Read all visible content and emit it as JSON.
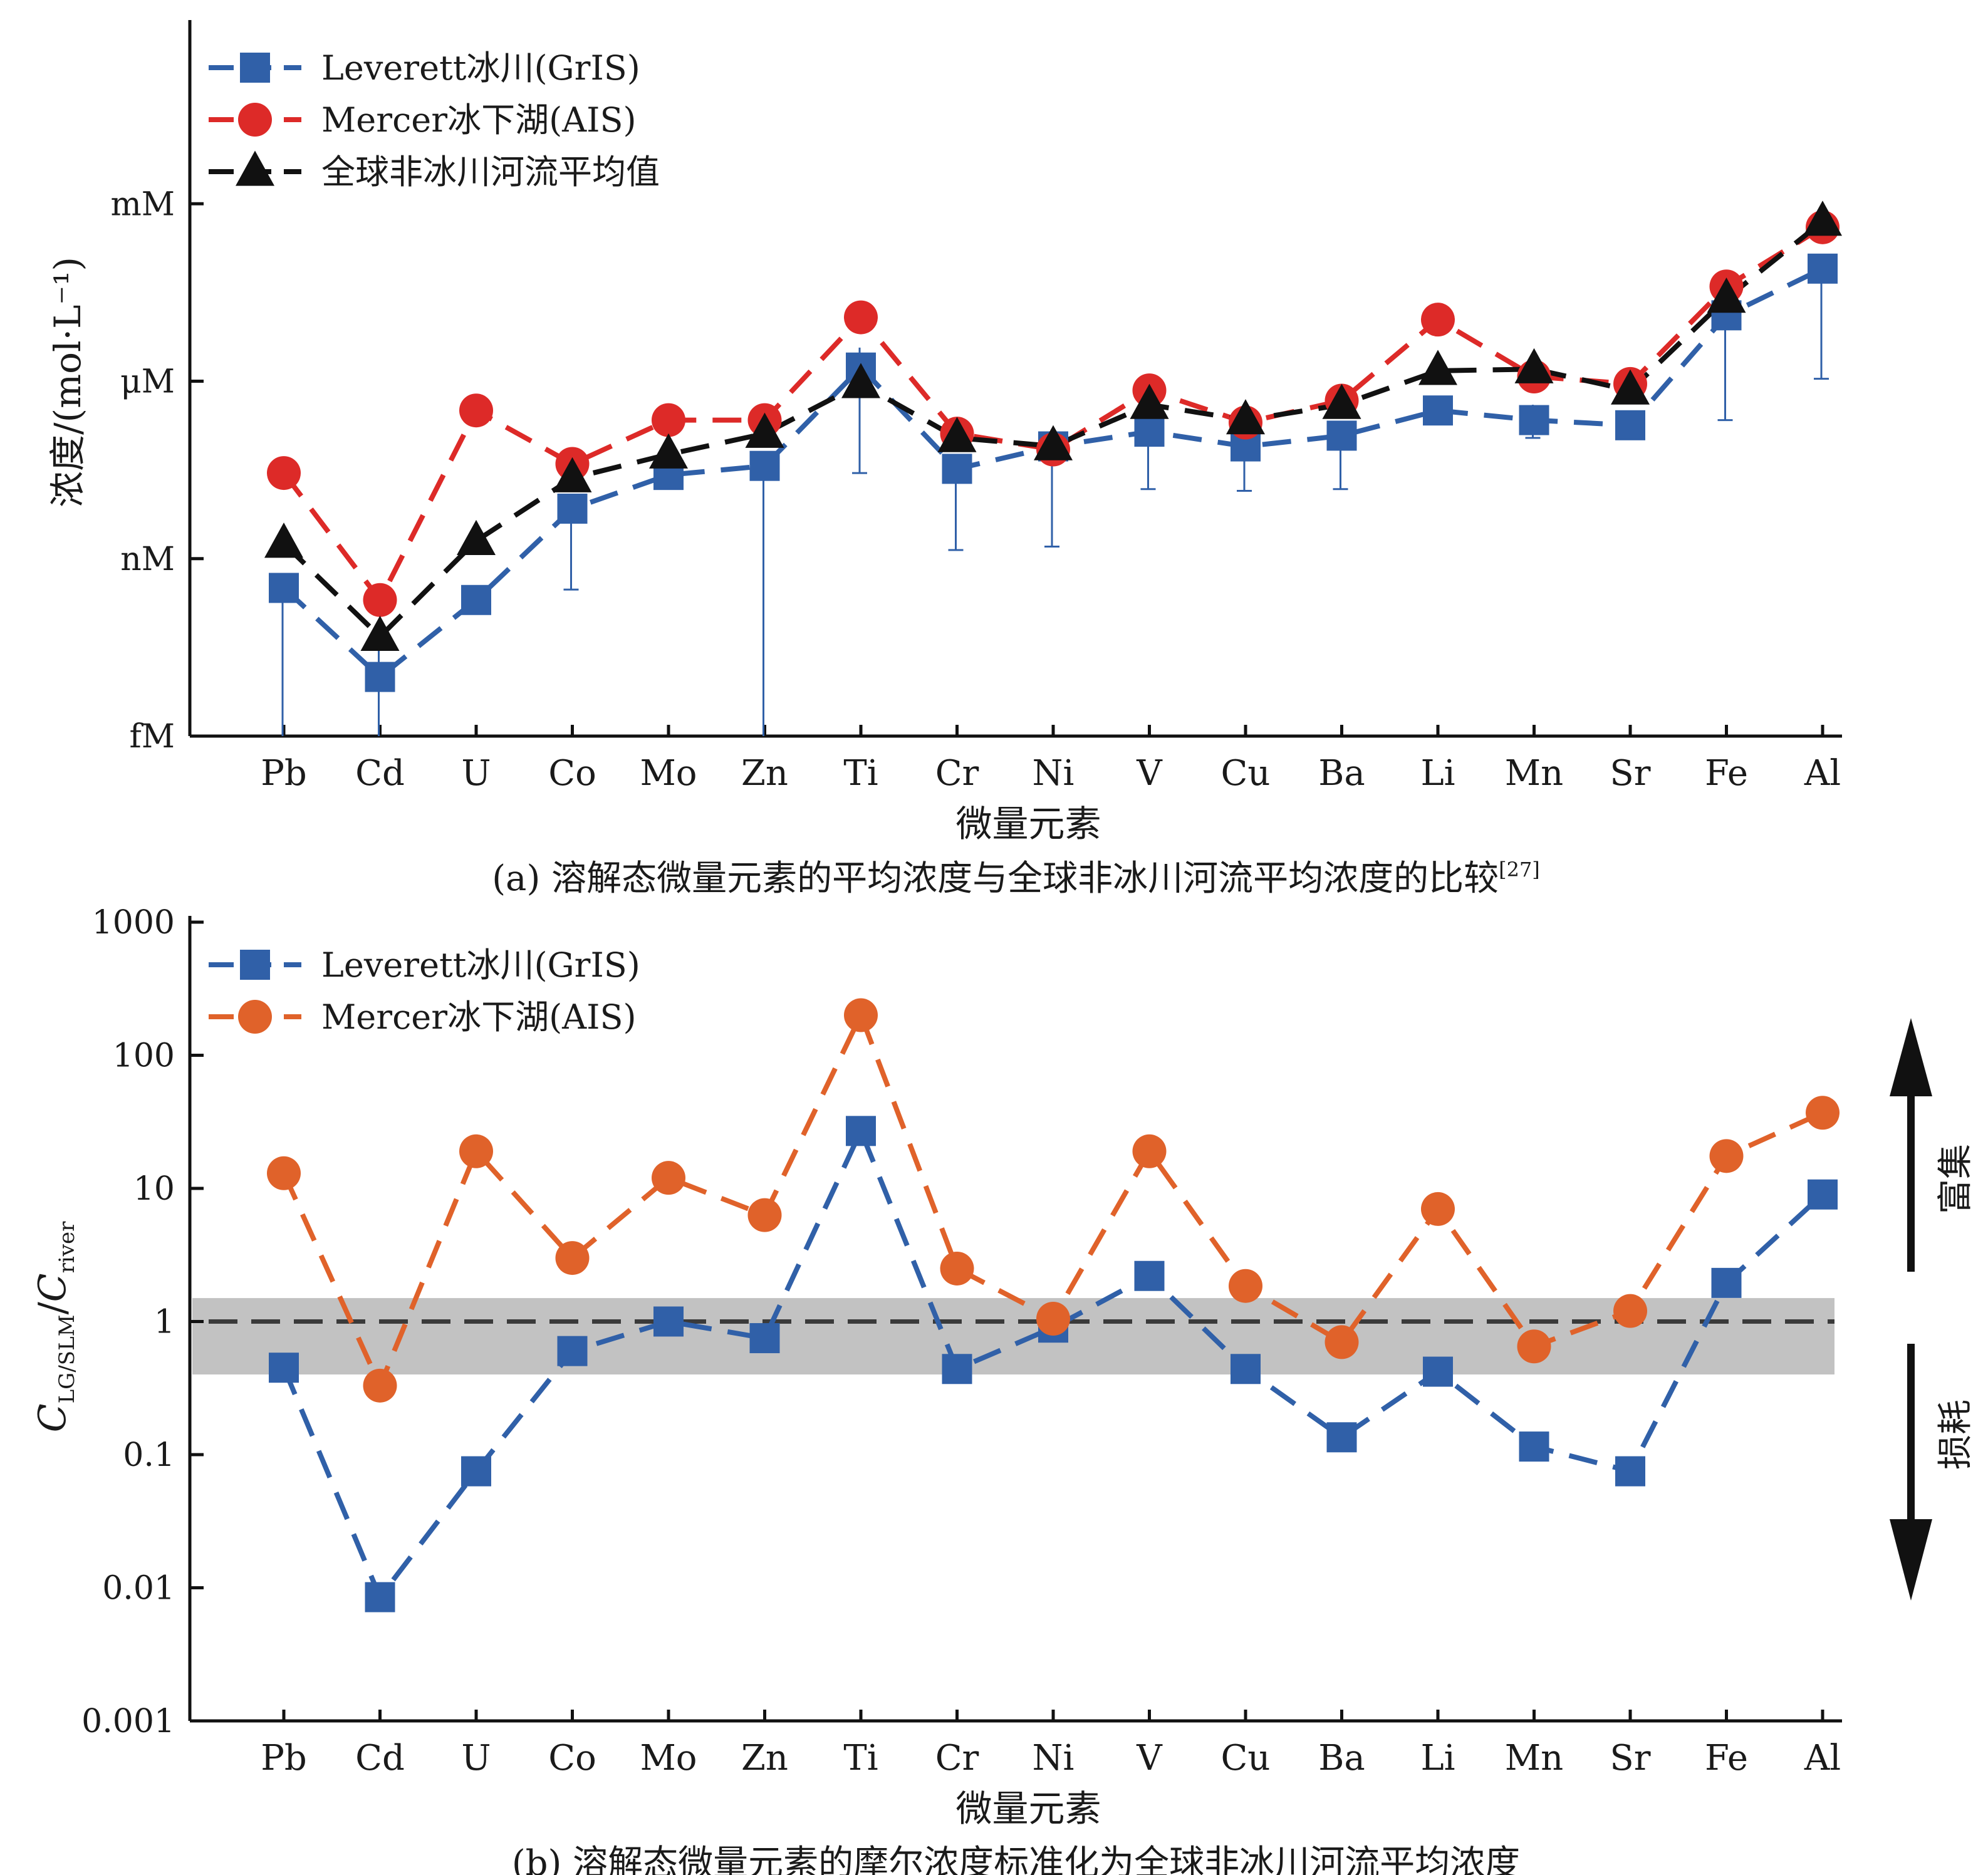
{
  "chart_data": [
    {
      "type": "line",
      "caption": "(a) 溶解态微量元素的平均浓度与全球非冰川河流平均浓度的比较",
      "caption_ref": "[27]",
      "xlabel": "微量元素",
      "ylabel": "浓度/(mol·L⁻¹)",
      "categories": [
        "Pb",
        "Cd",
        "U",
        "Co",
        "Mo",
        "Zn",
        "Ti",
        "Cr",
        "Ni",
        "V",
        "Cu",
        "Ba",
        "Li",
        "Mn",
        "Sr",
        "Fe",
        "Al"
      ],
      "y_scale": "log",
      "ylim": [
        1e-15,
        0.001
      ],
      "y_ticks": [
        {
          "value": 1e-15,
          "label": "fM"
        },
        {
          "value": 1e-12,
          "label": "nM"
        },
        {
          "value": 1e-09,
          "label": "μM"
        },
        {
          "value": 1e-06,
          "label": "mM"
        }
      ],
      "legend_position": "top-left",
      "grid": false,
      "series": [
        {
          "name": "Leverett冰川(GrIS)",
          "marker": "square",
          "color": "#3060a8",
          "values": [
            3.2e-13,
            1e-14,
            2e-13,
            7e-12,
            2.6e-11,
            3.7e-11,
            1.7e-09,
            3.3e-11,
            7.9e-11,
            1.4e-10,
            7.9e-11,
            1.2e-10,
            3.2e-10,
            2.2e-10,
            1.8e-10,
            1.3e-08,
            8e-08
          ],
          "error_low": [
            1e-15,
            1e-15,
            1.6e-13,
            3e-13,
            1.8e-11,
            1e-15,
            2.8e-11,
            1.4e-12,
            1.6e-12,
            1.5e-11,
            1.4e-11,
            1.5e-11,
            2.4e-10,
            1.1e-10,
            1.2e-10,
            2.2e-10,
            1.1e-09
          ],
          "error_high": [
            3.2e-13,
            3.2e-14,
            2e-13,
            7e-12,
            3.5e-11,
            3.7e-11,
            3.7e-09,
            3.3e-11,
            1e-10,
            2e-10,
            7.9e-11,
            1.8e-10,
            3.7e-10,
            4e-10,
            2.8e-10,
            3e-08,
            1.2e-07
          ]
        },
        {
          "name": "Mercer冰下湖(AIS)",
          "marker": "circle",
          "color": "#dd2a28",
          "values": [
            2.8e-11,
            2e-13,
            3.2e-10,
            4e-11,
            2.2e-10,
            2.2e-10,
            1.2e-08,
            1.3e-10,
            7e-11,
            7e-10,
            2e-10,
            4.7e-10,
            1.1e-08,
            1.2e-09,
            9e-10,
            4e-08,
            4e-07
          ]
        },
        {
          "name": "全球非冰川河流平均值",
          "marker": "triangle",
          "color": "#111111",
          "values": [
            1.8e-12,
            4.8e-14,
            2e-12,
            2.3e-11,
            5.8e-11,
            1.3e-10,
            9e-10,
            1.1e-10,
            8e-11,
            4e-10,
            2.2e-10,
            4e-10,
            1.5e-09,
            1.6e-09,
            7e-10,
            2.5e-08,
            5e-07
          ]
        }
      ]
    },
    {
      "type": "line",
      "caption": "(b) 溶解态微量元素的摩尔浓度标准化为全球非冰川河流平均浓度",
      "xlabel": "微量元素",
      "ylabel_main": "C",
      "ylabel_main_sub": "LG/SLM",
      "ylabel_div": "C",
      "ylabel_div_sub": "river",
      "categories": [
        "Pb",
        "Cd",
        "U",
        "Co",
        "Mo",
        "Zn",
        "Ti",
        "Cr",
        "Ni",
        "V",
        "Cu",
        "Ba",
        "Li",
        "Mn",
        "Sr",
        "Fe",
        "Al"
      ],
      "y_scale": "log",
      "ylim": [
        0.001,
        1000
      ],
      "y_ticks": [
        {
          "value": 0.001,
          "label": "0.001"
        },
        {
          "value": 0.01,
          "label": "0.01"
        },
        {
          "value": 0.1,
          "label": "0.1"
        },
        {
          "value": 1,
          "label": "1"
        },
        {
          "value": 10,
          "label": "10"
        },
        {
          "value": 100,
          "label": "100"
        },
        {
          "value": 1000,
          "label": "1000"
        }
      ],
      "reference_line": 1,
      "reference_band": [
        0.4,
        1.5
      ],
      "legend_position": "top-left",
      "grid": false,
      "annotations": {
        "up": "富集",
        "down": "损耗"
      },
      "series": [
        {
          "name": "Leverett冰川(GrIS)",
          "marker": "square",
          "color": "#3060a8",
          "values": [
            0.45,
            0.0085,
            0.075,
            0.6,
            1.0,
            0.75,
            27,
            0.44,
            0.9,
            2.2,
            0.44,
            0.135,
            0.42,
            0.115,
            0.075,
            1.95,
            9.0
          ]
        },
        {
          "name": "Mercer冰下湖(AIS)",
          "marker": "circle",
          "color": "#e0622a",
          "values": [
            13,
            0.33,
            19,
            3.0,
            12,
            6.3,
            200,
            2.5,
            1.05,
            19,
            1.85,
            0.7,
            7.0,
            0.65,
            1.2,
            17.5,
            37
          ]
        }
      ]
    }
  ]
}
